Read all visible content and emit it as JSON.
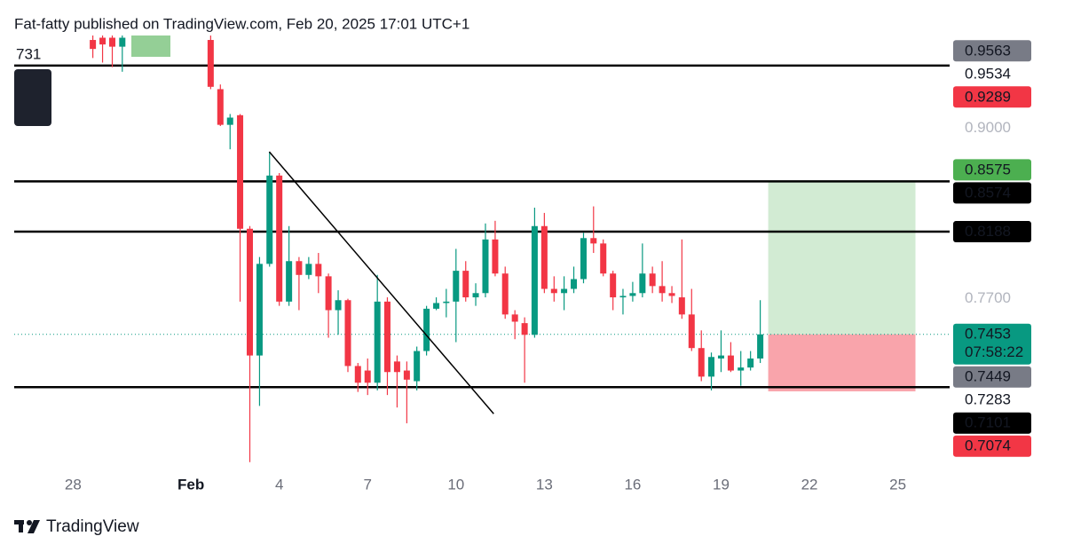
{
  "chart_data": {
    "type": "candlestick",
    "title": "Fat-fatty published on TradingView.com, Feb 20, 2025 17:01 UTC+1",
    "brand": "TradingView",
    "edge_label": "731",
    "countdown": "07:58:22",
    "log_scale": true,
    "grid": false,
    "up_color": "#089981",
    "down_color": "#f23645",
    "last_price_color": "#089981",
    "xlim": [
      -2,
      29.76
    ],
    "xticks": [
      {
        "value": 0,
        "label": "28"
      },
      {
        "value": 4,
        "label": "Feb"
      },
      {
        "value": 7,
        "label": "4"
      },
      {
        "value": 10,
        "label": "7"
      },
      {
        "value": 13,
        "label": "10"
      },
      {
        "value": 16,
        "label": "13"
      },
      {
        "value": 19,
        "label": "16"
      },
      {
        "value": 22,
        "label": "19"
      },
      {
        "value": 25,
        "label": "22"
      },
      {
        "value": 28,
        "label": "25"
      }
    ],
    "ylim": [
      0.658,
      0.98
    ],
    "yticks": [
      {
        "value": 0.9,
        "label": "0.9000"
      },
      {
        "value": 0.77,
        "label": "0.7700"
      }
    ],
    "candles": {
      "x": [
        0.67,
        1,
        1.33,
        1.67,
        4.67,
        5,
        5.33,
        5.67,
        6,
        6.33,
        6.67,
        7,
        7.33,
        7.67,
        8,
        8.33,
        8.67,
        9,
        9.33,
        9.67,
        10,
        10.33,
        10.67,
        11,
        11.33,
        11.67,
        12,
        12.33,
        12.67,
        13,
        13.33,
        13.67,
        14,
        14.33,
        14.67,
        15,
        15.33,
        15.67,
        16,
        16.33,
        16.67,
        17,
        17.33,
        17.67,
        18,
        18.33,
        18.67,
        19,
        19.33,
        19.67,
        20,
        20.33,
        20.67,
        21,
        21.33,
        21.67,
        22,
        22.33,
        22.67,
        23,
        23.33
      ],
      "open": [
        0.976,
        0.978,
        0.978,
        0.97,
        0.976,
        0.933,
        0.903,
        0.911,
        0.821,
        0.731,
        0.795,
        0.862,
        0.768,
        0.797,
        0.787,
        0.795,
        0.786,
        0.762,
        0.769,
        0.724,
        0.721,
        0.713,
        0.768,
        0.727,
        0.721,
        0.714,
        0.734,
        0.763,
        0.767,
        0.768,
        0.79,
        0.771,
        0.774,
        0.813,
        0.788,
        0.759,
        0.753,
        0.745,
        0.823,
        0.777,
        0.774,
        0.777,
        0.784,
        0.814,
        0.81,
        0.788,
        0.771,
        0.772,
        0.774,
        0.788,
        0.779,
        0.774,
        0.771,
        0.759,
        0.736,
        0.717,
        0.729,
        0.731,
        0.721,
        0.723,
        0.729
      ],
      "high": [
        0.98,
        0.98,
        0.98,
        0.98,
        0.98,
        0.937,
        0.912,
        0.912,
        0.823,
        0.8,
        0.881,
        0.864,
        0.823,
        0.8,
        0.8,
        0.803,
        0.788,
        0.776,
        0.77,
        0.726,
        0.729,
        0.787,
        0.771,
        0.731,
        0.727,
        0.737,
        0.765,
        0.771,
        0.777,
        0.806,
        0.797,
        0.781,
        0.825,
        0.827,
        0.793,
        0.762,
        0.757,
        0.837,
        0.833,
        0.786,
        0.786,
        0.793,
        0.818,
        0.838,
        0.813,
        0.79,
        0.777,
        0.782,
        0.81,
        0.793,
        0.797,
        0.779,
        0.813,
        0.777,
        0.748,
        0.733,
        0.748,
        0.74,
        0.734,
        0.734,
        0.769
      ],
      "low": [
        0.96,
        0.956,
        0.952,
        0.948,
        0.933,
        0.902,
        0.883,
        0.768,
        0.663,
        0.698,
        0.793,
        0.765,
        0.765,
        0.762,
        0.784,
        0.774,
        0.743,
        0.745,
        0.72,
        0.707,
        0.705,
        0.708,
        0.705,
        0.697,
        0.687,
        0.708,
        0.731,
        0.762,
        0.757,
        0.74,
        0.768,
        0.765,
        0.771,
        0.786,
        0.756,
        0.742,
        0.713,
        0.743,
        0.774,
        0.768,
        0.762,
        0.774,
        0.781,
        0.803,
        0.786,
        0.762,
        0.759,
        0.768,
        0.771,
        0.774,
        0.768,
        0.767,
        0.756,
        0.734,
        0.714,
        0.708,
        0.72,
        0.72,
        0.711,
        0.721,
        0.726
      ],
      "close": [
        0.968,
        0.972,
        0.97,
        0.978,
        0.935,
        0.903,
        0.909,
        0.821,
        0.731,
        0.795,
        0.862,
        0.768,
        0.797,
        0.787,
        0.795,
        0.786,
        0.762,
        0.769,
        0.724,
        0.713,
        0.713,
        0.768,
        0.72,
        0.72,
        0.715,
        0.734,
        0.763,
        0.767,
        0.768,
        0.79,
        0.771,
        0.774,
        0.813,
        0.788,
        0.759,
        0.754,
        0.745,
        0.823,
        0.777,
        0.774,
        0.777,
        0.784,
        0.814,
        0.81,
        0.788,
        0.771,
        0.772,
        0.774,
        0.788,
        0.779,
        0.774,
        0.772,
        0.759,
        0.736,
        0.717,
        0.73,
        0.731,
        0.721,
        0.723,
        0.729,
        0.7453
      ]
    },
    "trendline": {
      "x": [
        6.66,
        14.28
      ],
      "y": [
        0.881,
        0.693
      ],
      "color": "#000000"
    },
    "position": {
      "x_start": 23.6,
      "x_end": 28.6,
      "entry": 0.7453,
      "target": 0.8575,
      "stop": 0.7074,
      "target_color": "#4caf50",
      "stop_color": "#f23645"
    },
    "level_color": "#000000",
    "price_tags": [
      {
        "value": 0.9563,
        "color": "#787b86"
      },
      {
        "value": 0.9534,
        "line": true
      },
      {
        "value": 0.9289,
        "color": "#f23645"
      },
      {
        "value": 0.8574,
        "color": "#000000",
        "line": true
      },
      {
        "value": 0.8188,
        "color": "#000000",
        "line": true
      },
      {
        "value": 0.7449,
        "color": "#787b86"
      },
      {
        "value": 0.7283
      },
      {
        "value": 0.7101,
        "color": "#000000",
        "line": true
      }
    ]
  }
}
